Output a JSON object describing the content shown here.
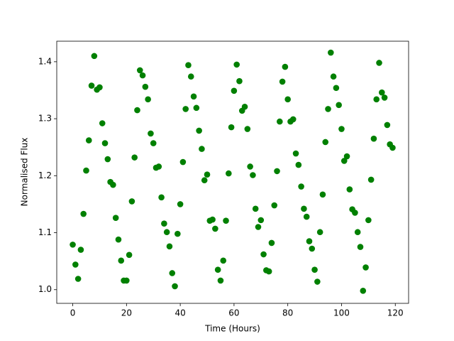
{
  "chart_data": {
    "type": "scatter",
    "x_label": "Time (Hours)",
    "y_label": "Normalised Flux",
    "series": [
      {
        "color": "#008000",
        "x": [
          0,
          1,
          2,
          3,
          4,
          5,
          6,
          7,
          8,
          9,
          10,
          11,
          12,
          13,
          14,
          15,
          16,
          17,
          18,
          19,
          20,
          21,
          22,
          23,
          24,
          25,
          26,
          27,
          28,
          29,
          30,
          31,
          32,
          33,
          34,
          35,
          36,
          37,
          38,
          39,
          40,
          41,
          42,
          43,
          44,
          45,
          46,
          47,
          48,
          49,
          50,
          51,
          52,
          53,
          54,
          55,
          56,
          57,
          58,
          59,
          60,
          61,
          62,
          63,
          64,
          65,
          66,
          67,
          68,
          69,
          70,
          71,
          72,
          73,
          74,
          75,
          76,
          77,
          78,
          79,
          80,
          81,
          82,
          83,
          84,
          85,
          86,
          87,
          88,
          89,
          90,
          91,
          92,
          93,
          94,
          95,
          96,
          97,
          98,
          99,
          100,
          101,
          102,
          103,
          104,
          105,
          106,
          107,
          108,
          109,
          110,
          111,
          112,
          113,
          114,
          115,
          116,
          117,
          118,
          119
        ],
        "values": [
          1.079,
          1.044,
          1.019,
          1.07,
          1.133,
          1.209,
          1.262,
          1.358,
          1.41,
          1.351,
          1.355,
          1.292,
          1.257,
          1.229,
          1.189,
          1.184,
          1.126,
          1.088,
          1.051,
          1.016,
          1.016,
          1.061,
          1.155,
          1.232,
          1.315,
          1.385,
          1.376,
          1.356,
          1.334,
          1.274,
          1.257,
          1.214,
          1.216,
          1.162,
          1.116,
          1.101,
          1.076,
          1.029,
          1.006,
          1.098,
          1.15,
          1.224,
          1.317,
          1.394,
          1.374,
          1.339,
          1.319,
          1.279,
          1.247,
          1.192,
          1.202,
          1.121,
          1.123,
          1.107,
          1.035,
          1.016,
          1.051,
          1.121,
          1.204,
          1.285,
          1.349,
          1.395,
          1.366,
          1.314,
          1.321,
          1.282,
          1.216,
          1.201,
          1.142,
          1.11,
          1.122,
          1.062,
          1.034,
          1.032,
          1.082,
          1.148,
          1.208,
          1.295,
          1.365,
          1.391,
          1.334,
          1.295,
          1.299,
          1.239,
          1.219,
          1.181,
          1.142,
          1.128,
          1.085,
          1.072,
          1.035,
          1.014,
          1.101,
          1.167,
          1.259,
          1.317,
          1.416,
          1.374,
          1.354,
          1.324,
          1.282,
          1.226,
          1.234,
          1.176,
          1.141,
          1.135,
          1.101,
          1.075,
          0.998,
          1.039,
          1.122,
          1.193,
          1.265,
          1.334,
          1.398,
          1.346,
          1.337,
          1.289,
          1.255,
          1.249
        ]
      }
    ],
    "xlim": [
      -5.95,
      124.95
    ],
    "xticks": [
      0,
      20,
      40,
      60,
      80,
      100,
      120
    ],
    "ylim": [
      0.976,
      1.436
    ],
    "yticks": [
      {
        "value": 1,
        "label": "1.0"
      },
      1.1,
      1.2,
      1.3,
      1.4
    ]
  }
}
